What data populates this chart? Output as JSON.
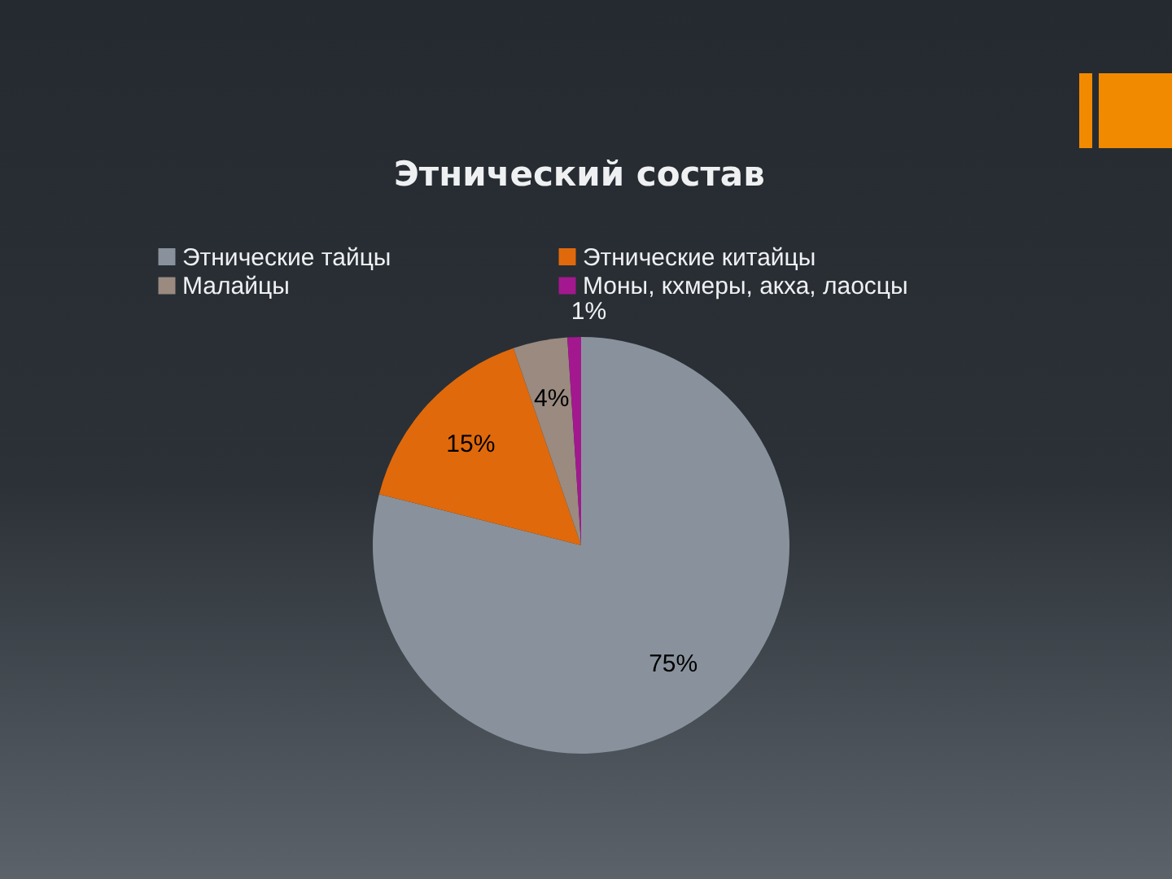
{
  "chart_data": {
    "type": "pie",
    "title": "Этнический состав",
    "categories": [
      "Этнические тайцы",
      "Этнические китайцы",
      "Малайцы",
      "Моны, кхмеры, акха, лаосцы"
    ],
    "values": [
      75,
      15,
      4,
      1
    ],
    "colors": [
      "#89929c",
      "#e0690c",
      "#9a8a80",
      "#a3188f"
    ],
    "value_labels": [
      "75%",
      "15%",
      "4%",
      "1%"
    ],
    "legend": "top"
  }
}
